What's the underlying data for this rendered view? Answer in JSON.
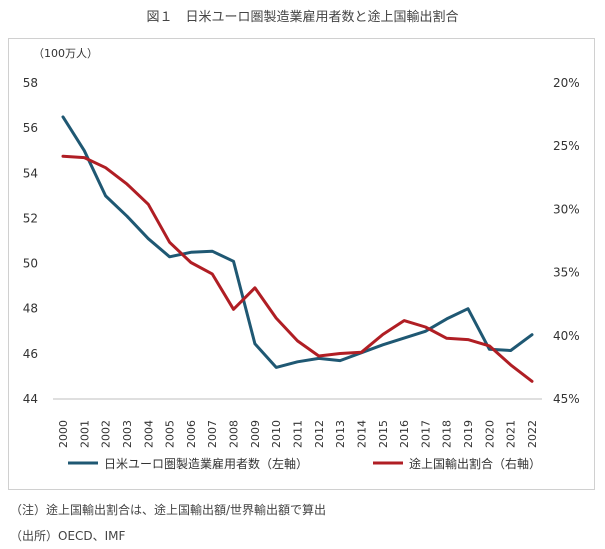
{
  "title": "図１　日米ユーロ圏製造業雇用者数と途上国輸出割合",
  "notes": {
    "note1": "（注）途上国輸出割合は、途上国輸出額/世界輸出額で算出",
    "note2": "（出所）OECD、IMF"
  },
  "chart_data": {
    "type": "line",
    "title": "図１　日米ユーロ圏製造業雇用者数と途上国輸出割合",
    "left_axis_unit": "（100万人）",
    "x": [
      "2000",
      "2001",
      "2002",
      "2003",
      "2004",
      "2005",
      "2006",
      "2007",
      "2008",
      "2009",
      "2010",
      "2011",
      "2012",
      "2013",
      "2014",
      "2015",
      "2016",
      "2017",
      "2018",
      "2019",
      "2020",
      "2021",
      "2022"
    ],
    "ylim_left": [
      44,
      58
    ],
    "yticks_left": [
      "44",
      "46",
      "48",
      "50",
      "52",
      "54",
      "56",
      "58"
    ],
    "ylim_right_inverted": [
      20,
      45
    ],
    "yticks_right": [
      "20%",
      "25%",
      "30%",
      "35%",
      "40%",
      "45%"
    ],
    "grid": false,
    "legend_position": "bottom",
    "series": [
      {
        "name": "日米ユーロ圏製造業雇用者数（左軸）",
        "axis": "left",
        "color": "#1f5873",
        "values": [
          56.5,
          55.0,
          53.0,
          52.1,
          51.1,
          50.3,
          50.5,
          50.55,
          50.1,
          46.45,
          45.4,
          45.65,
          45.8,
          45.7,
          46.05,
          46.4,
          46.7,
          47.0,
          47.55,
          48.0,
          46.2,
          46.15,
          46.85
        ]
      },
      {
        "name": "途上国輸出割合（右軸）",
        "axis": "right",
        "color": "#b01e24",
        "values": [
          25.8,
          25.9,
          26.7,
          28.0,
          29.6,
          32.6,
          34.2,
          35.1,
          37.9,
          36.2,
          38.6,
          40.4,
          41.6,
          41.4,
          41.3,
          39.9,
          38.8,
          39.3,
          40.2,
          40.3,
          40.8,
          42.3,
          43.6
        ]
      }
    ]
  }
}
